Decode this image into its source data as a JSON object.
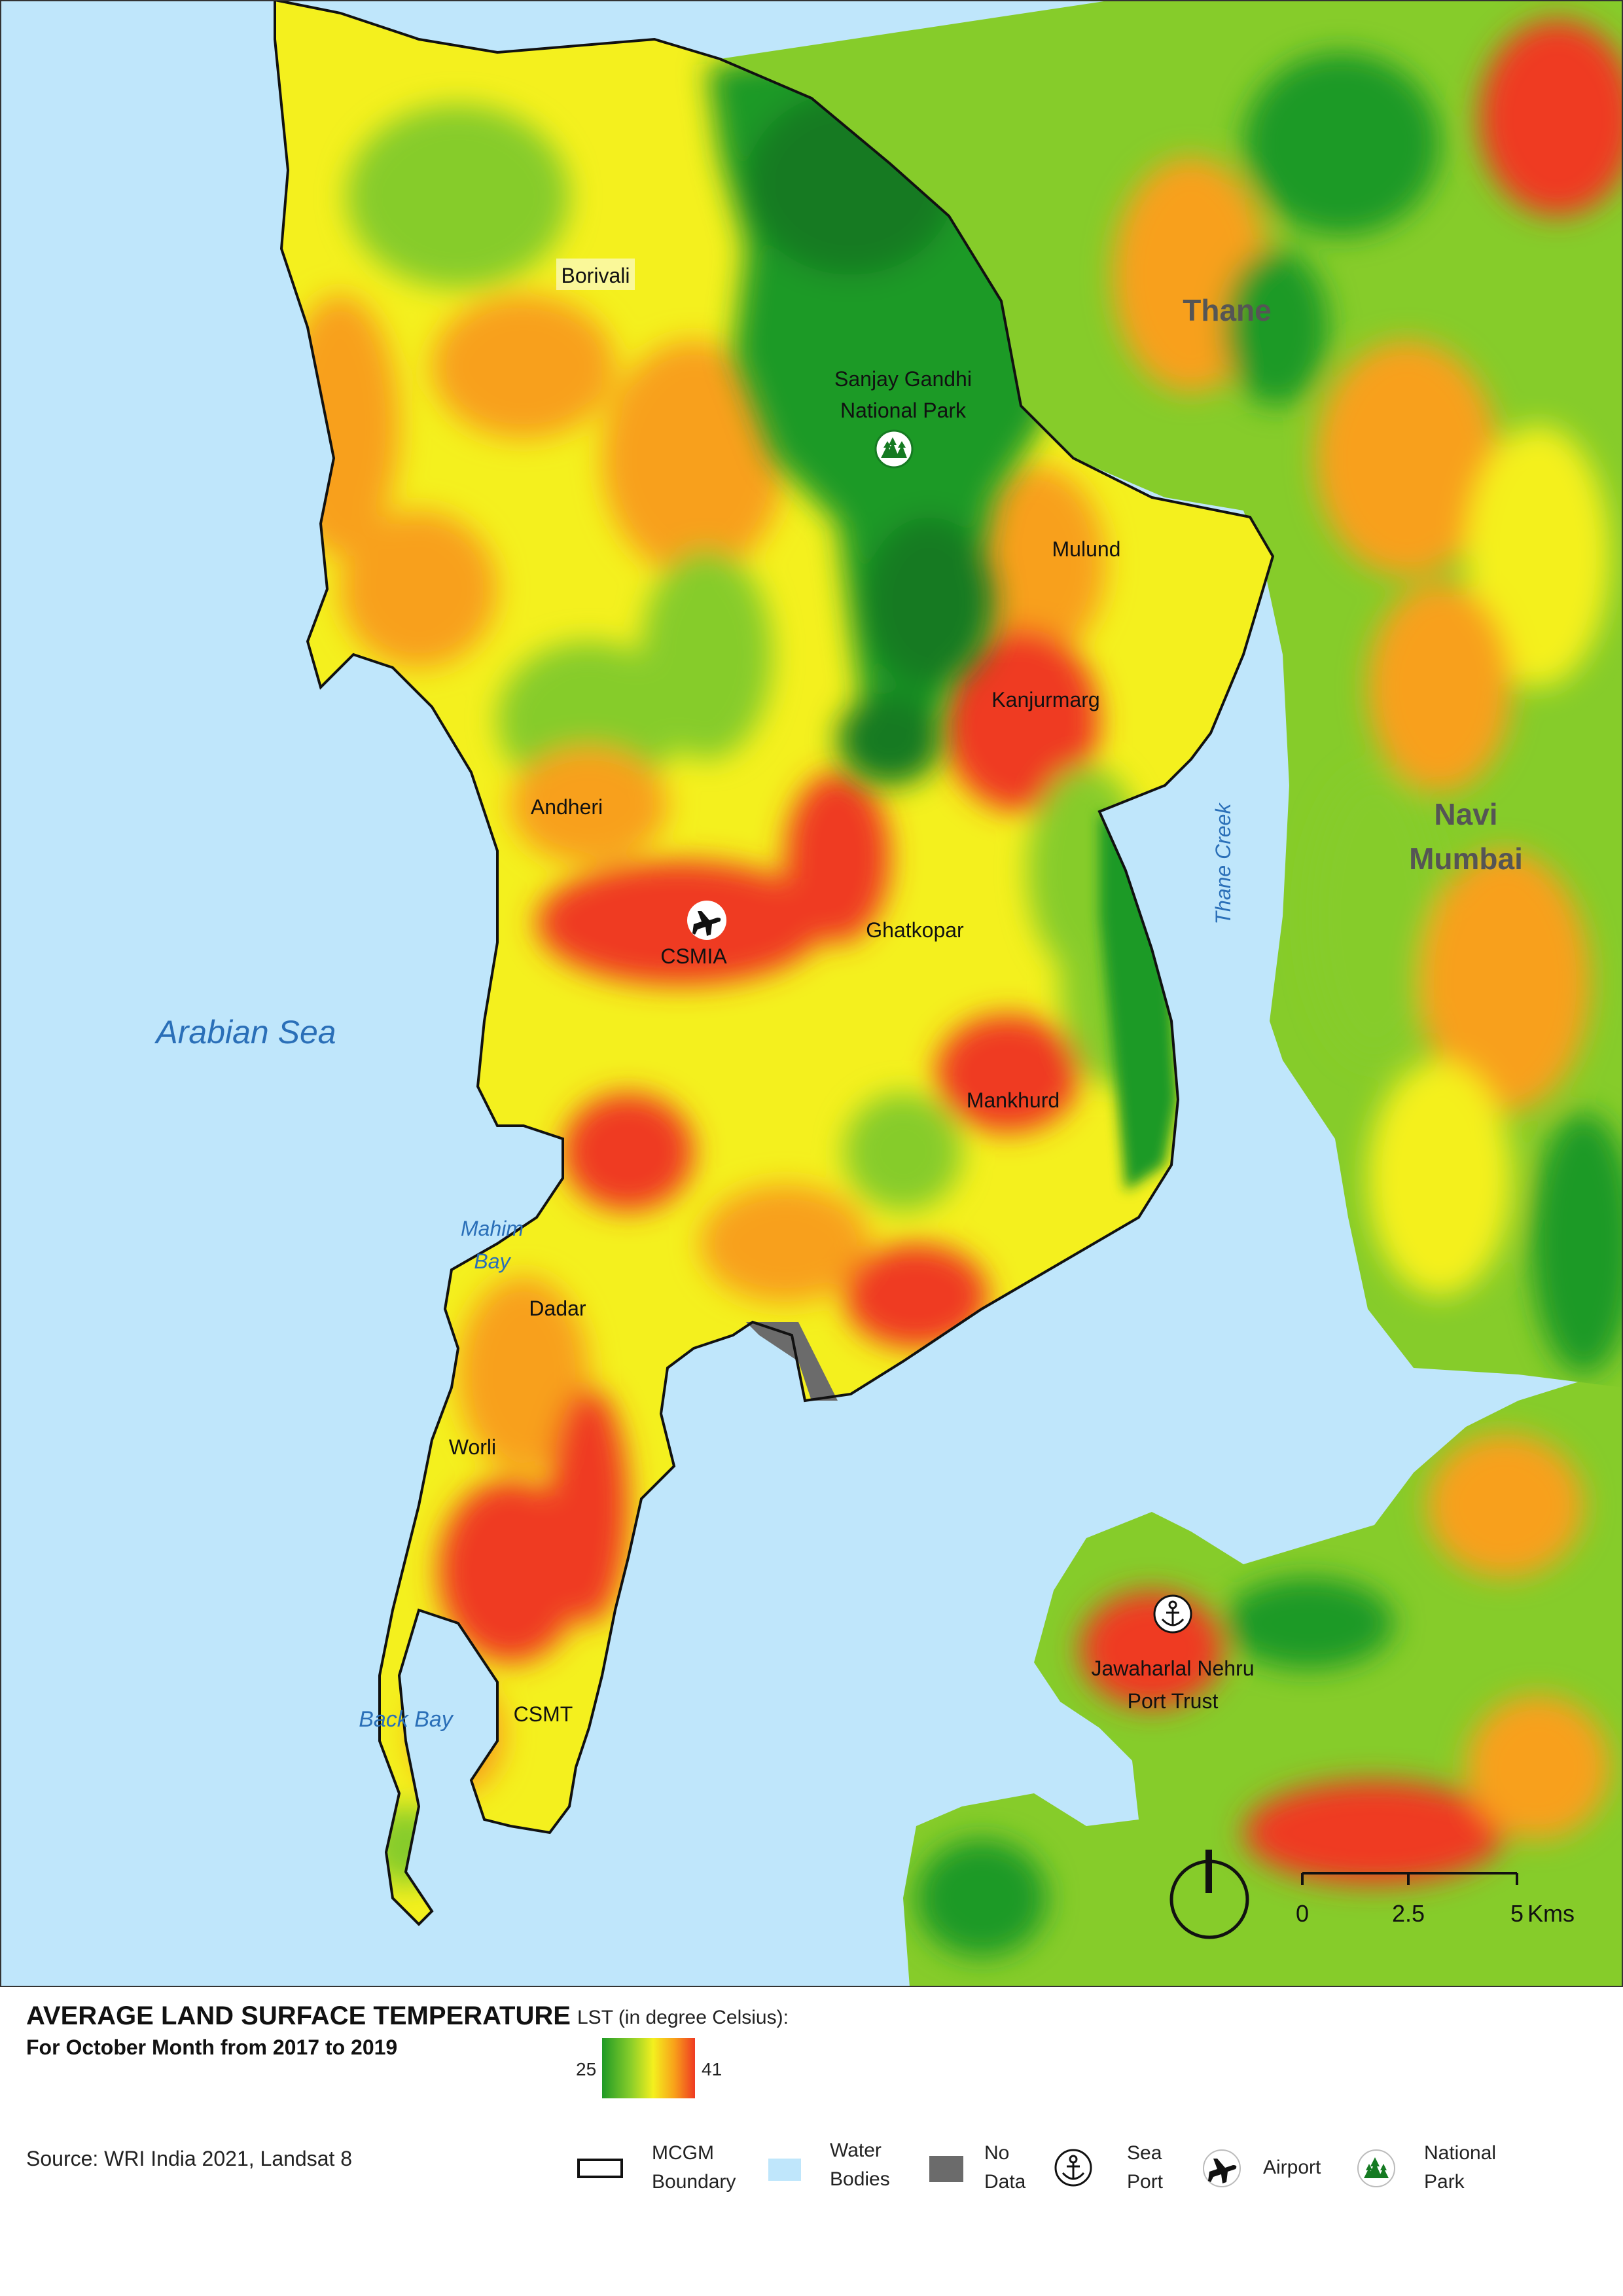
{
  "map": {
    "labels": {
      "borivali": "Borivali",
      "sgnp": "Sanjay Gandhi\nNational Park",
      "thane": "Thane",
      "mulund": "Mulund",
      "kanjurmarg": "Kanjurmarg",
      "andheri": "Andheri",
      "navi_mumbai": "Navi\nMumbai",
      "thane_creek": "Thane Creek",
      "csmia": "CSMIA",
      "ghatkopar": "Ghatkopar",
      "arabian_sea": "Arabian Sea",
      "mankhurd": "Mankhurd",
      "mahim_bay": "Mahim\nBay",
      "dadar": "Dadar",
      "worli": "Worli",
      "jnpt": "Jawaharlal Nehru\nPort Trust",
      "back_bay": "Back Bay",
      "csmt": "CSMT"
    },
    "scale": {
      "t0": "0",
      "t1": "2.5",
      "t2": "5",
      "unit": "Kms"
    },
    "colors": {
      "water": "#bfe6fb",
      "hot": "#ef3a22",
      "warm": "#f8a01a",
      "mid": "#f4f01e",
      "cool": "#86cc2a",
      "cold": "#1f9a26",
      "forest": "#157a22",
      "boundary": "#111111",
      "nodata": "#6b6b6b"
    }
  },
  "legend": {
    "title": "AVERAGE LAND SURFACE TEMPERATURE",
    "subtitle": "For October Month from 2017 to 2019",
    "lst_label": "LST (in degree Celsius):",
    "min": "25",
    "max": "41",
    "source": "Source: WRI India 2021, Landsat 8",
    "items": {
      "boundary": "MCGM\nBoundary",
      "water": "Water\nBodies",
      "nodata": "No\nData",
      "seaport": "Sea\nPort",
      "airport": "Airport",
      "park": "National\nPark"
    }
  }
}
